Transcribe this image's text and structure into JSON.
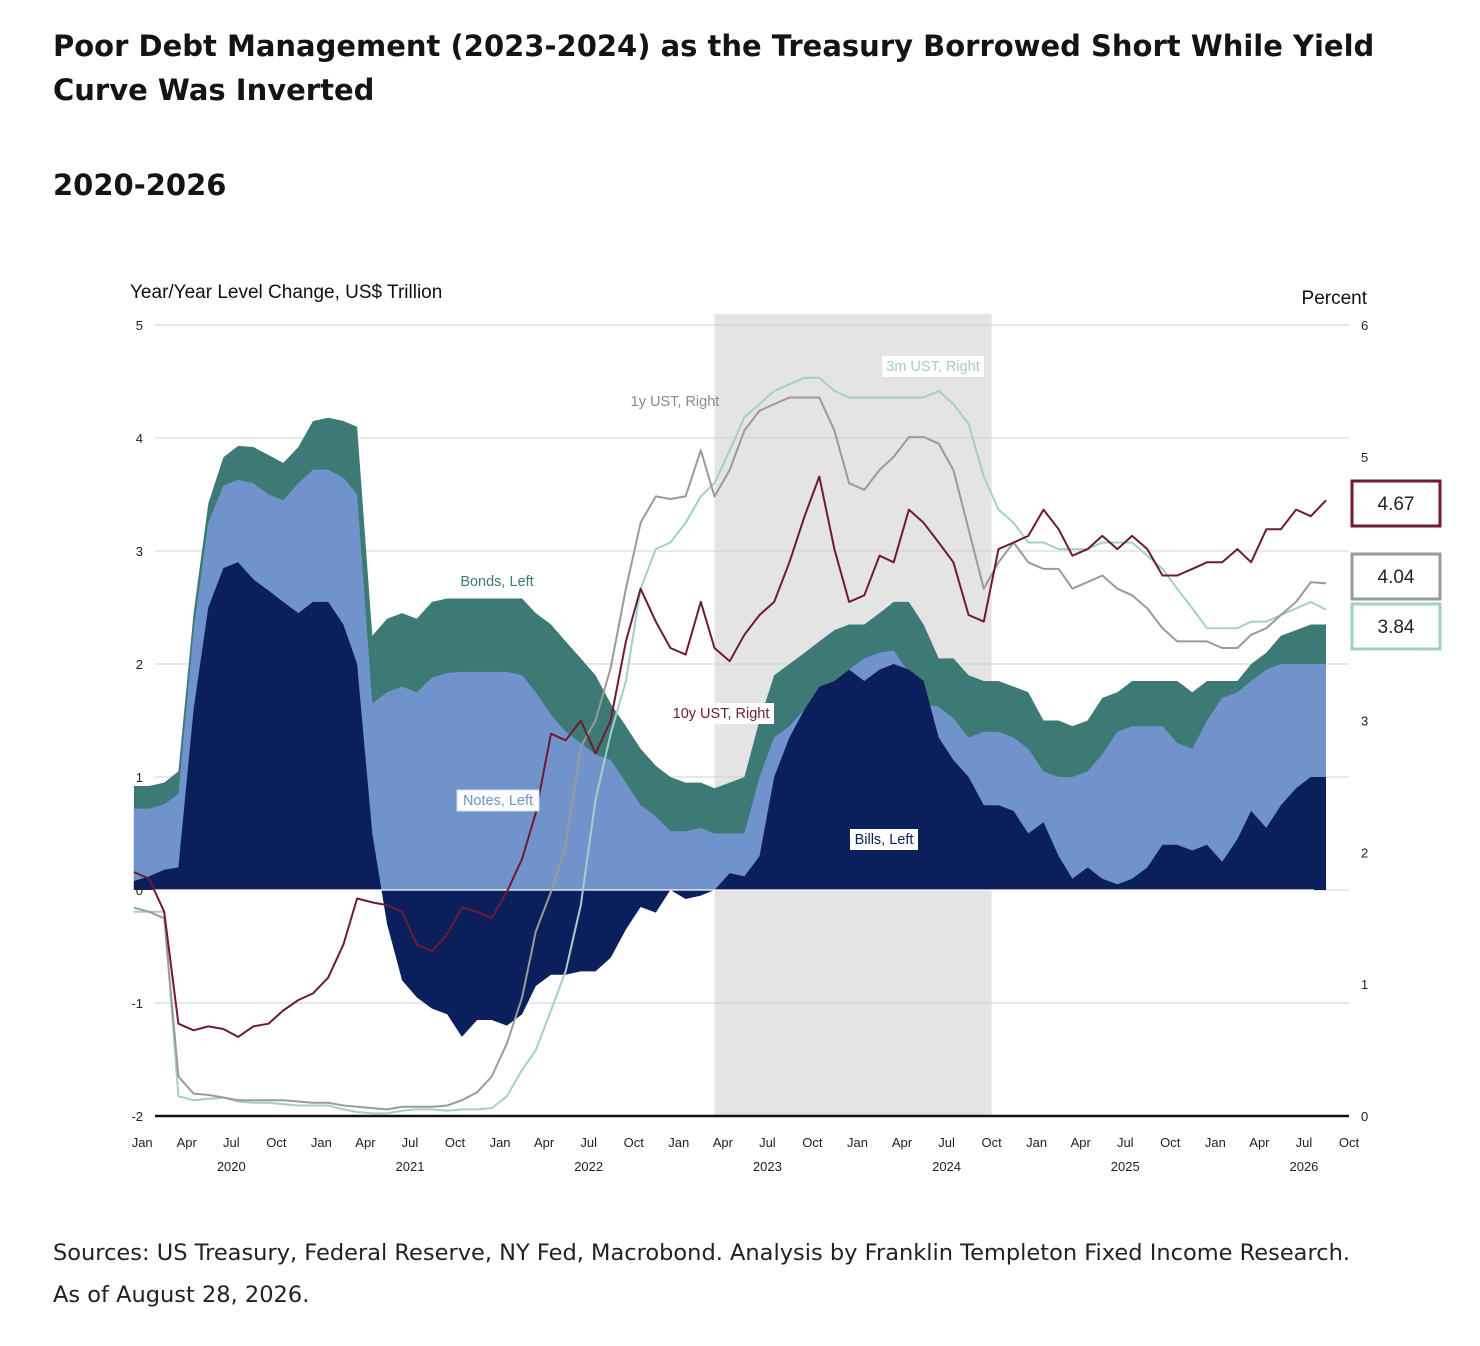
{
  "header": {
    "title": "Poor Debt Management (2023-2024) as the Treasury Borrowed Short While Yield Curve Was Inverted",
    "subtitle": "2020-2026"
  },
  "footer": {
    "sources": "Sources: US Treasury, Federal Reserve, NY Fed, Macrobond. Analysis by Franklin Templeton Fixed Income Research.  As of August 28, 2026."
  },
  "colors": {
    "bills": "#0b1f5c",
    "notes": "#7093cc",
    "bonds": "#3d7a76",
    "y10": "#6e1a33",
    "y1": "#9a9a9a",
    "m3": "#a3cfc9",
    "shade": "#e4e4e4",
    "grid": "#d2d2d2"
  },
  "chart_data": {
    "type": "area",
    "ylabel_left": "Year/Year Level Change, US$ Trillion",
    "ylabel_right": "Percent",
    "ylim_left": [
      -2,
      5
    ],
    "ylim_right": [
      0,
      6
    ],
    "yticks_left": [
      "5",
      "4",
      "3",
      "2",
      "1",
      "0",
      "-1",
      "-2"
    ],
    "yticks_right": [
      "6",
      "5",
      "3",
      "2",
      "1",
      "0"
    ],
    "xlim": [
      "2019-12-01",
      "2026-10-01"
    ],
    "month_ticks": [
      "Jan",
      "Apr",
      "Jul",
      "Oct",
      "Jan",
      "Apr",
      "Jul",
      "Oct",
      "Jan",
      "Apr",
      "Jul",
      "Oct",
      "Jan",
      "Apr",
      "Jul",
      "Oct",
      "Jan",
      "Apr",
      "Jul",
      "Oct",
      "Jan",
      "Apr",
      "Jul",
      "Oct",
      "Jan",
      "Apr",
      "Jul",
      "Oct"
    ],
    "year_labels": [
      "2020",
      "2021",
      "2022",
      "2023",
      "2024",
      "2025",
      "2026"
    ],
    "shaded_period": [
      "2023-03-15",
      "2024-10-01"
    ],
    "grid": true,
    "x": [
      "2019-12",
      "2020-01",
      "2020-02",
      "2020-03",
      "2020-04",
      "2020-05",
      "2020-06",
      "2020-07",
      "2020-08",
      "2020-09",
      "2020-10",
      "2020-11",
      "2020-12",
      "2021-01",
      "2021-02",
      "2021-03",
      "2021-04",
      "2021-05",
      "2021-06",
      "2021-07",
      "2021-08",
      "2021-09",
      "2021-10",
      "2021-11",
      "2021-12",
      "2022-01",
      "2022-02",
      "2022-03",
      "2022-04",
      "2022-05",
      "2022-06",
      "2022-07",
      "2022-08",
      "2022-09",
      "2022-10",
      "2022-11",
      "2022-12",
      "2023-01",
      "2023-02",
      "2023-03",
      "2023-04",
      "2023-05",
      "2023-06",
      "2023-07",
      "2023-08",
      "2023-09",
      "2023-10",
      "2023-11",
      "2023-12",
      "2024-01",
      "2024-02",
      "2024-03",
      "2024-04",
      "2024-05",
      "2024-06",
      "2024-07",
      "2024-08",
      "2024-09",
      "2024-10",
      "2024-11",
      "2024-12",
      "2025-01",
      "2025-02",
      "2025-03",
      "2025-04",
      "2025-05",
      "2025-06",
      "2025-07",
      "2025-08",
      "2025-09",
      "2025-10",
      "2025-11",
      "2025-12",
      "2026-01",
      "2026-02",
      "2026-03",
      "2026-04",
      "2026-05",
      "2026-06",
      "2026-07",
      "2026-08"
    ],
    "series": [
      {
        "name": "Bills, Left",
        "axis": "left",
        "kind": "area",
        "values": [
          0.08,
          0.12,
          0.18,
          0.2,
          1.6,
          2.5,
          2.85,
          2.9,
          2.75,
          2.65,
          2.55,
          2.45,
          2.55,
          2.55,
          2.35,
          2.0,
          0.5,
          -0.3,
          -0.8,
          -0.95,
          -1.05,
          -1.1,
          -1.3,
          -1.15,
          -1.15,
          -1.2,
          -1.1,
          -0.85,
          -0.75,
          -0.75,
          -0.72,
          -0.72,
          -0.6,
          -0.35,
          -0.15,
          -0.2,
          0.0,
          -0.08,
          -0.05,
          0.0,
          0.15,
          0.12,
          0.3,
          1.0,
          1.35,
          1.6,
          1.8,
          1.85,
          1.95,
          1.85,
          1.95,
          2.0,
          1.95,
          1.85,
          1.35,
          1.15,
          1.0,
          0.75,
          0.75,
          0.7,
          0.5,
          0.6,
          0.3,
          0.1,
          0.2,
          0.1,
          0.05,
          0.1,
          0.2,
          0.4,
          0.4,
          0.35,
          0.4,
          0.25,
          0.45,
          0.7,
          0.55,
          0.75,
          0.9,
          1.0,
          1.0
        ]
      },
      {
        "name": "Notes, Left",
        "axis": "left",
        "kind": "area",
        "values": [
          0.72,
          0.72,
          0.76,
          0.85,
          2.3,
          3.25,
          3.58,
          3.63,
          3.6,
          3.5,
          3.45,
          3.6,
          3.72,
          3.72,
          3.65,
          3.5,
          1.65,
          1.75,
          1.8,
          1.75,
          1.88,
          1.92,
          1.93,
          1.93,
          1.93,
          1.93,
          1.9,
          1.75,
          1.55,
          1.4,
          1.3,
          1.2,
          1.15,
          0.95,
          0.75,
          0.65,
          0.52,
          0.52,
          0.55,
          0.5,
          0.5,
          0.5,
          1.0,
          1.35,
          1.45,
          1.6,
          1.8,
          1.85,
          1.95,
          2.05,
          2.1,
          2.12,
          1.92,
          1.65,
          1.62,
          1.52,
          1.35,
          1.4,
          1.4,
          1.35,
          1.25,
          1.05,
          1.0,
          1.0,
          1.05,
          1.2,
          1.4,
          1.45,
          1.45,
          1.45,
          1.3,
          1.25,
          1.5,
          1.7,
          1.75,
          1.85,
          1.95,
          2.0,
          2.0,
          2.0,
          2.0
        ]
      },
      {
        "name": "Bonds, Left",
        "axis": "left",
        "kind": "area",
        "values": [
          0.92,
          0.92,
          0.95,
          1.05,
          2.45,
          3.42,
          3.83,
          3.93,
          3.92,
          3.85,
          3.78,
          3.92,
          4.15,
          4.18,
          4.15,
          4.1,
          2.25,
          2.4,
          2.45,
          2.4,
          2.55,
          2.58,
          2.58,
          2.58,
          2.58,
          2.58,
          2.58,
          2.45,
          2.35,
          2.2,
          2.05,
          1.9,
          1.65,
          1.45,
          1.25,
          1.1,
          1.0,
          0.95,
          0.95,
          0.9,
          0.95,
          1.0,
          1.5,
          1.9,
          2.0,
          2.1,
          2.2,
          2.3,
          2.35,
          2.35,
          2.45,
          2.55,
          2.55,
          2.35,
          2.05,
          2.05,
          1.9,
          1.85,
          1.85,
          1.8,
          1.75,
          1.5,
          1.5,
          1.45,
          1.5,
          1.7,
          1.75,
          1.85,
          1.85,
          1.85,
          1.85,
          1.75,
          1.85,
          1.85,
          1.85,
          2.0,
          2.1,
          2.25,
          2.3,
          2.35,
          2.35
        ]
      },
      {
        "name": "10y UST, Right",
        "axis": "right",
        "kind": "line",
        "last": "4.67",
        "values": [
          1.85,
          1.8,
          1.55,
          0.7,
          0.65,
          0.68,
          0.66,
          0.6,
          0.68,
          0.7,
          0.8,
          0.88,
          0.93,
          1.05,
          1.3,
          1.65,
          1.62,
          1.6,
          1.55,
          1.3,
          1.25,
          1.38,
          1.58,
          1.55,
          1.5,
          1.7,
          1.95,
          2.3,
          2.9,
          2.85,
          3.0,
          2.75,
          3.0,
          3.6,
          4.0,
          3.75,
          3.55,
          3.5,
          3.9,
          3.55,
          3.45,
          3.65,
          3.8,
          3.9,
          4.2,
          4.55,
          4.85,
          4.3,
          3.9,
          3.95,
          4.25,
          4.2,
          4.6,
          4.5,
          4.35,
          4.2,
          3.8,
          3.75,
          4.3,
          4.35,
          4.4,
          4.6,
          4.45,
          4.25,
          4.3,
          4.4,
          4.3,
          4.4,
          4.3,
          4.1,
          4.1,
          4.15,
          4.2,
          4.2,
          4.3,
          4.2,
          4.45,
          4.45,
          4.6,
          4.55,
          4.67
        ]
      },
      {
        "name": "1y UST, Right",
        "axis": "right",
        "kind": "line",
        "last": "4.04",
        "values": [
          1.58,
          1.55,
          1.5,
          0.3,
          0.17,
          0.16,
          0.14,
          0.12,
          0.12,
          0.12,
          0.12,
          0.11,
          0.1,
          0.1,
          0.08,
          0.07,
          0.06,
          0.05,
          0.07,
          0.07,
          0.07,
          0.08,
          0.12,
          0.18,
          0.3,
          0.55,
          0.9,
          1.4,
          1.7,
          2.05,
          2.8,
          3.0,
          3.4,
          4.0,
          4.5,
          4.7,
          4.68,
          4.7,
          5.05,
          4.7,
          4.9,
          5.2,
          5.35,
          5.4,
          5.45,
          5.45,
          5.45,
          5.2,
          4.8,
          4.75,
          4.9,
          5.0,
          5.15,
          5.15,
          5.1,
          4.9,
          4.45,
          4.0,
          4.2,
          4.35,
          4.2,
          4.15,
          4.15,
          4.0,
          4.05,
          4.1,
          4.0,
          3.95,
          3.85,
          3.7,
          3.6,
          3.6,
          3.6,
          3.55,
          3.55,
          3.65,
          3.7,
          3.8,
          3.9,
          4.05,
          4.04
        ]
      },
      {
        "name": "3m UST, Right",
        "axis": "right",
        "kind": "line",
        "last": "3.84",
        "values": [
          1.55,
          1.55,
          1.55,
          0.15,
          0.12,
          0.13,
          0.14,
          0.11,
          0.1,
          0.1,
          0.09,
          0.08,
          0.08,
          0.08,
          0.05,
          0.03,
          0.02,
          0.02,
          0.04,
          0.05,
          0.05,
          0.04,
          0.05,
          0.05,
          0.06,
          0.15,
          0.35,
          0.5,
          0.8,
          1.1,
          1.6,
          2.4,
          2.9,
          3.3,
          4.0,
          4.3,
          4.35,
          4.5,
          4.7,
          4.8,
          5.05,
          5.3,
          5.4,
          5.5,
          5.55,
          5.6,
          5.6,
          5.5,
          5.45,
          5.45,
          5.45,
          5.45,
          5.45,
          5.45,
          5.5,
          5.4,
          5.25,
          4.85,
          4.6,
          4.5,
          4.35,
          4.35,
          4.3,
          4.3,
          4.3,
          4.35,
          4.35,
          4.35,
          4.25,
          4.15,
          4.0,
          3.85,
          3.7,
          3.7,
          3.7,
          3.75,
          3.75,
          3.8,
          3.85,
          3.9,
          3.84
        ]
      }
    ],
    "annotations": [
      "Bonds, Left",
      "Notes, Left",
      "Bills, Left",
      "10y UST, Right",
      "1y UST, Right",
      "3m UST, Right"
    ]
  }
}
